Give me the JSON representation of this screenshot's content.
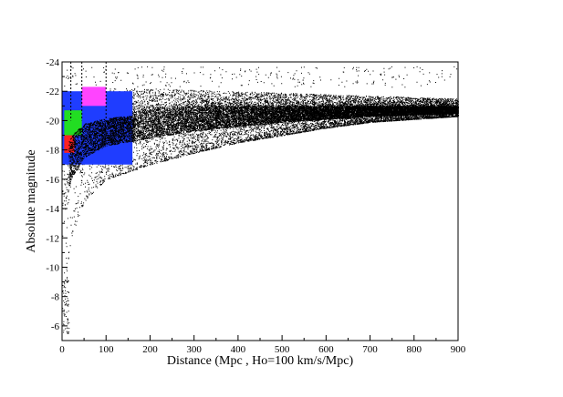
{
  "chart_data": {
    "type": "scatter",
    "title": "",
    "xlabel": "Distance (Mpc , Ho=100 km/s/Mpc)",
    "ylabel": "Absolute magnitude",
    "xlim": [
      0,
      900
    ],
    "ylim": [
      -5,
      -24
    ],
    "y_axis_inverted": true,
    "grid": false,
    "legend": "none",
    "x_ticks": [
      {
        "value": 0,
        "label": "0"
      },
      {
        "value": 100,
        "label": "100"
      },
      {
        "value": 200,
        "label": "200"
      },
      {
        "value": 300,
        "label": "300"
      },
      {
        "value": 400,
        "label": "400"
      },
      {
        "value": 500,
        "label": "500"
      },
      {
        "value": 600,
        "label": "600"
      },
      {
        "value": 700,
        "label": "700"
      },
      {
        "value": 800,
        "label": "800"
      },
      {
        "value": 900,
        "label": "900"
      }
    ],
    "y_ticks": [
      {
        "value": -24,
        "label": "-24"
      },
      {
        "value": -22,
        "label": "-22"
      },
      {
        "value": -20,
        "label": "-20"
      },
      {
        "value": -18,
        "label": "-18"
      },
      {
        "value": -16,
        "label": "-16"
      },
      {
        "value": -14,
        "label": "-14"
      },
      {
        "value": -12,
        "label": "-12"
      },
      {
        "value": -10,
        "label": "-10"
      },
      {
        "value": -8,
        "label": "-8"
      },
      {
        "value": -6,
        "label": "-6"
      }
    ],
    "dashed_vertical_lines": [
      20,
      45,
      100
    ],
    "colors": {
      "points": "#000000",
      "blue": "#1f3dff",
      "magenta": "#ff44ff",
      "green": "#22dd22",
      "red": "#ff2020"
    },
    "regions": [
      {
        "color": "blue",
        "x": [
          0,
          160
        ],
        "y": [
          -17,
          -22
        ]
      },
      {
        "color": "magenta",
        "x": [
          45,
          100
        ],
        "y": [
          -21,
          -22.3
        ]
      },
      {
        "color": "green",
        "x": [
          5,
          45
        ],
        "y": [
          -19,
          -20.7
        ]
      },
      {
        "color": "red",
        "x": [
          5,
          28
        ],
        "y": [
          -17.8,
          -19
        ]
      }
    ],
    "density_band": {
      "description_x": [
        5,
        20,
        50,
        100,
        200,
        300,
        400,
        500,
        600,
        700,
        800,
        900
      ],
      "upper_y": [
        -20.5,
        -21.5,
        -22.0,
        -22.2,
        -22.2,
        -22.1,
        -22.0,
        -21.9,
        -21.8,
        -21.7,
        -21.6,
        -21.5
      ],
      "core_upper_y": [
        -18.5,
        -19.5,
        -20.2,
        -20.5,
        -20.8,
        -21.0,
        -21.0,
        -21.0,
        -21.0,
        -21.0,
        -21.0,
        -21.0
      ],
      "core_lower_y": [
        -14.0,
        -16.0,
        -17.5,
        -18.3,
        -18.8,
        -19.3,
        -19.6,
        -19.9,
        -20.1,
        -20.3,
        -20.4,
        -20.5
      ],
      "lower_y": [
        -8.5,
        -12.0,
        -14.5,
        -16.0,
        -17.0,
        -17.8,
        -18.5,
        -19.0,
        -19.5,
        -19.9,
        -20.1,
        -20.3
      ],
      "sparse_outliers_y": [
        -23.5,
        -5.5
      ]
    }
  }
}
